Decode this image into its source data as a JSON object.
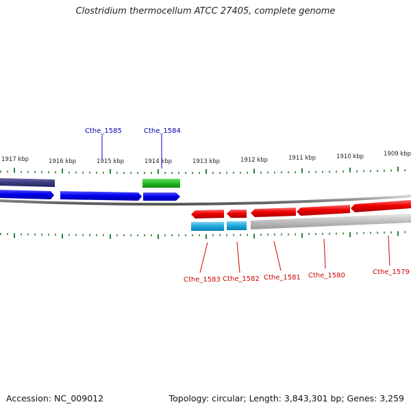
{
  "title": "Clostridium thermocellum ATCC 27405, complete genome",
  "accession": "Accession: NC_009012",
  "topology": "Topology: circular; Length: 3,843,301 bp; Genes: 3,259",
  "colors": {
    "ticks": "#2e7d2e",
    "forward_gene": "#0000e6",
    "reverse_gene": "#e80000",
    "forward_label": "#0000aa",
    "reverse_label": "#cc0000",
    "forward_other": "#2e2e7a",
    "highlight_green": "#33bb33",
    "cyan": "#22aadd",
    "gray": "#bbbbbb"
  },
  "scale": {
    "kbp_labels": [
      "1917 kbp",
      "1916 kbp",
      "1915 kbp",
      "1914 kbp",
      "1913 kbp",
      "1912 kbp",
      "1911 kbp",
      "1910 kbp",
      "1909 kbp"
    ]
  },
  "genes_forward": [
    {
      "name": "Cthe_1585"
    },
    {
      "name": "Cthe_1584"
    }
  ],
  "genes_reverse": [
    {
      "name": "Cthe_1583"
    },
    {
      "name": "Cthe_1582"
    },
    {
      "name": "Cthe_1581"
    },
    {
      "name": "Cthe_1580"
    },
    {
      "name": "Cthe_1579"
    }
  ]
}
